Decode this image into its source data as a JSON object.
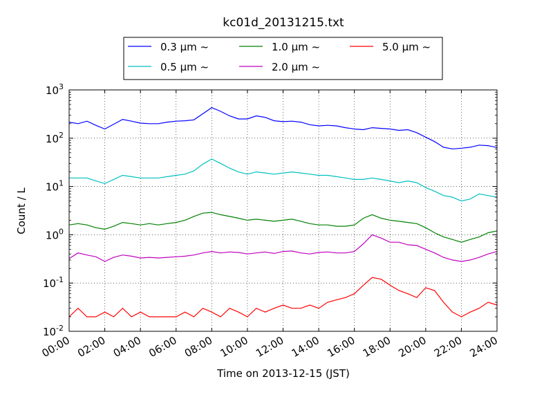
{
  "chart_data": {
    "type": "line",
    "title": "kc01d_20131215.txt",
    "xlabel": "Time on 2013-12-15 (JST)",
    "ylabel": "Count / L",
    "y_scale": "log",
    "ylim": [
      0.01,
      1000
    ],
    "xlim": [
      "00:00",
      "24:00"
    ],
    "grid": true,
    "legend_position": "top, above plot",
    "x_ticks": [
      "00:00",
      "02:00",
      "04:00",
      "06:00",
      "08:00",
      "10:00",
      "12:00",
      "14:00",
      "16:00",
      "18:00",
      "20:00",
      "22:00",
      "24:00"
    ],
    "y_ticks": [
      {
        "base": "10",
        "exp": "-2"
      },
      {
        "base": "10",
        "exp": "-1"
      },
      {
        "base": "10",
        "exp": "0"
      },
      {
        "base": "10",
        "exp": "1"
      },
      {
        "base": "10",
        "exp": "2"
      },
      {
        "base": "10",
        "exp": "3"
      }
    ],
    "series": [
      {
        "name": "0.3 μm ~",
        "color": "#0000ff",
        "x": [
          0,
          0.5,
          1,
          1.5,
          2,
          2.5,
          3,
          3.5,
          4,
          4.5,
          5,
          5.5,
          6,
          6.5,
          7,
          7.5,
          8,
          8.5,
          9,
          9.5,
          10,
          10.5,
          11,
          11.5,
          12,
          12.5,
          13,
          13.5,
          14,
          14.5,
          15,
          15.5,
          16,
          16.5,
          17,
          17.5,
          18,
          18.5,
          19,
          19.5,
          20,
          20.5,
          21,
          21.5,
          22,
          22.5,
          23,
          23.5,
          24
        ],
        "values": [
          215,
          200,
          225,
          185,
          155,
          195,
          245,
          225,
          205,
          200,
          200,
          215,
          225,
          230,
          240,
          320,
          430,
          360,
          290,
          250,
          250,
          290,
          270,
          230,
          220,
          225,
          215,
          190,
          180,
          185,
          180,
          165,
          155,
          150,
          165,
          160,
          155,
          145,
          150,
          130,
          105,
          85,
          65,
          60,
          62,
          65,
          72,
          70,
          64
        ]
      },
      {
        "name": "0.5 μm ~",
        "color": "#00bfbf",
        "x": [
          0,
          0.5,
          1,
          1.5,
          2,
          2.5,
          3,
          3.5,
          4,
          4.5,
          5,
          5.5,
          6,
          6.5,
          7,
          7.5,
          8,
          8.5,
          9,
          9.5,
          10,
          10.5,
          11,
          11.5,
          12,
          12.5,
          13,
          13.5,
          14,
          14.5,
          15,
          15.5,
          16,
          16.5,
          17,
          17.5,
          18,
          18.5,
          19,
          19.5,
          20,
          20.5,
          21,
          21.5,
          22,
          22.5,
          23,
          23.5,
          24
        ],
        "values": [
          15,
          15,
          15,
          13,
          11.5,
          14,
          17,
          16,
          15,
          15,
          15,
          16,
          17,
          18,
          21,
          29,
          37,
          30,
          24,
          20,
          18,
          20,
          19,
          18,
          19,
          20,
          19,
          18,
          17,
          17,
          16,
          15,
          14,
          14,
          15,
          14,
          13,
          12,
          13,
          12,
          9.5,
          8,
          6.5,
          6,
          5,
          5.5,
          7,
          6.5,
          6
        ]
      },
      {
        "name": "1.0 μm ~",
        "color": "#008000",
        "x": [
          0,
          0.5,
          1,
          1.5,
          2,
          2.5,
          3,
          3.5,
          4,
          4.5,
          5,
          5.5,
          6,
          6.5,
          7,
          7.5,
          8,
          8.5,
          9,
          9.5,
          10,
          10.5,
          11,
          11.5,
          12,
          12.5,
          13,
          13.5,
          14,
          14.5,
          15,
          15.5,
          16,
          16.5,
          17,
          17.5,
          18,
          18.5,
          19,
          19.5,
          20,
          20.5,
          21,
          21.5,
          22,
          22.5,
          23,
          23.5,
          24
        ],
        "values": [
          1.6,
          1.7,
          1.6,
          1.4,
          1.3,
          1.5,
          1.8,
          1.7,
          1.6,
          1.7,
          1.6,
          1.7,
          1.8,
          2,
          2.4,
          2.8,
          2.9,
          2.6,
          2.4,
          2.2,
          2,
          2.1,
          2,
          1.9,
          2,
          2.1,
          1.9,
          1.7,
          1.6,
          1.6,
          1.5,
          1.5,
          1.6,
          2.2,
          2.6,
          2.2,
          2,
          1.9,
          1.8,
          1.7,
          1.4,
          1.1,
          0.9,
          0.8,
          0.7,
          0.8,
          0.9,
          1.1,
          1.2
        ]
      },
      {
        "name": "2.0 μm ~",
        "color": "#bf00bf",
        "x": [
          0,
          0.5,
          1,
          1.5,
          2,
          2.5,
          3,
          3.5,
          4,
          4.5,
          5,
          5.5,
          6,
          6.5,
          7,
          7.5,
          8,
          8.5,
          9,
          9.5,
          10,
          10.5,
          11,
          11.5,
          12,
          12.5,
          13,
          13.5,
          14,
          14.5,
          15,
          15.5,
          16,
          16.5,
          17,
          17.5,
          18,
          18.5,
          19,
          19.5,
          20,
          20.5,
          21,
          21.5,
          22,
          22.5,
          23,
          23.5,
          24
        ],
        "values": [
          0.32,
          0.42,
          0.38,
          0.35,
          0.28,
          0.34,
          0.38,
          0.36,
          0.33,
          0.34,
          0.33,
          0.34,
          0.35,
          0.36,
          0.38,
          0.42,
          0.45,
          0.42,
          0.44,
          0.43,
          0.4,
          0.42,
          0.44,
          0.41,
          0.45,
          0.46,
          0.42,
          0.4,
          0.43,
          0.44,
          0.42,
          0.42,
          0.45,
          0.65,
          1.0,
          0.85,
          0.7,
          0.7,
          0.62,
          0.6,
          0.5,
          0.42,
          0.34,
          0.3,
          0.28,
          0.3,
          0.34,
          0.4,
          0.45
        ]
      },
      {
        "name": "5.0 μm ~",
        "color": "#ff0000",
        "x": [
          0,
          0.5,
          1,
          1.5,
          2,
          2.5,
          3,
          3.5,
          4,
          4.5,
          5,
          5.5,
          6,
          6.5,
          7,
          7.5,
          8,
          8.5,
          9,
          9.5,
          10,
          10.5,
          11,
          11.5,
          12,
          12.5,
          13,
          13.5,
          14,
          14.5,
          15,
          15.5,
          16,
          16.5,
          17,
          17.5,
          18,
          18.5,
          19,
          19.5,
          20,
          20.5,
          21,
          21.5,
          22,
          22.5,
          23,
          23.5,
          24
        ],
        "values": [
          0.02,
          0.03,
          0.02,
          0.02,
          0.025,
          0.02,
          0.03,
          0.02,
          0.025,
          0.02,
          0.02,
          0.02,
          0.02,
          0.025,
          0.02,
          0.03,
          0.025,
          0.02,
          0.03,
          0.025,
          0.02,
          0.03,
          0.025,
          0.03,
          0.035,
          0.03,
          0.03,
          0.035,
          0.03,
          0.04,
          0.045,
          0.05,
          0.06,
          0.09,
          0.13,
          0.12,
          0.09,
          0.07,
          0.06,
          0.05,
          0.08,
          0.07,
          0.04,
          0.025,
          0.02,
          0.025,
          0.03,
          0.04,
          0.035
        ]
      }
    ]
  }
}
